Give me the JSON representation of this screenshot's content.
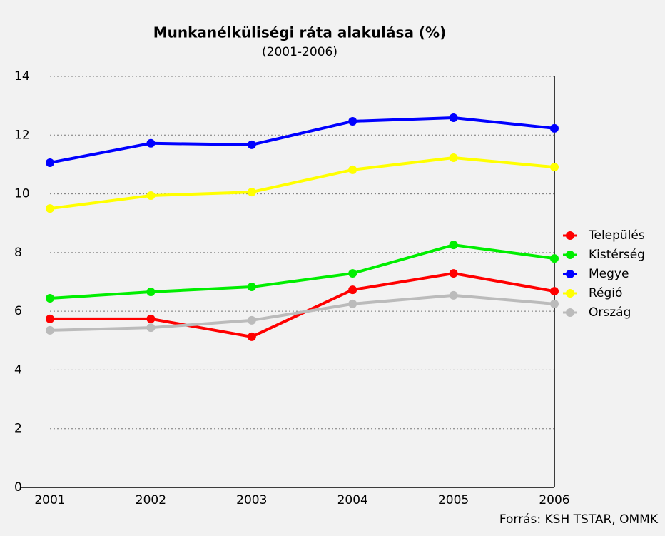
{
  "chart_data": {
    "type": "line",
    "title": "Munkanélküliségi ráta alakulása (%)",
    "subtitle": "(2001-2006)",
    "source": "Forrás: KSH TSTAR, OMMK",
    "categories": [
      "2001",
      "2002",
      "2003",
      "2004",
      "2005",
      "2006"
    ],
    "series": [
      {
        "name": "Település",
        "color": "#ff0000",
        "values": [
          5.74,
          5.74,
          5.13,
          6.73,
          7.29,
          6.68
        ]
      },
      {
        "name": "Kistérség",
        "color": "#00ee00",
        "values": [
          6.44,
          6.66,
          6.83,
          7.29,
          8.26,
          7.8
        ]
      },
      {
        "name": "Megye",
        "color": "#0000ff",
        "values": [
          11.06,
          11.72,
          11.67,
          12.47,
          12.59,
          12.23
        ]
      },
      {
        "name": "Régió",
        "color": "#ffff00",
        "values": [
          9.5,
          9.94,
          10.06,
          10.82,
          11.23,
          10.91
        ]
      },
      {
        "name": "Ország",
        "color": "#bbbbbb",
        "values": [
          5.35,
          5.44,
          5.69,
          6.25,
          6.54,
          6.25
        ]
      }
    ],
    "ylim": [
      0,
      14
    ],
    "yticks": [
      0,
      2,
      4,
      6,
      8,
      10,
      12,
      14
    ],
    "grid": true,
    "legend": "right"
  }
}
